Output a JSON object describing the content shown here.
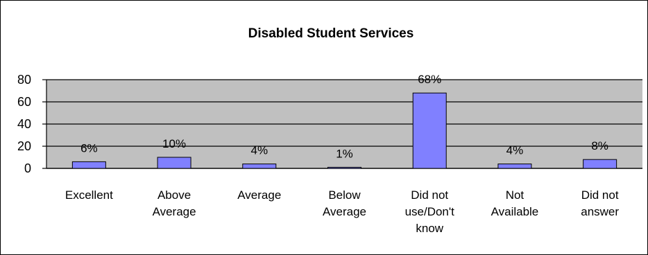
{
  "chart_data": {
    "type": "bar",
    "title": "Disabled Student Services",
    "xlabel": "",
    "ylabel": "",
    "categories": [
      "Excellent",
      "Above Average",
      "Average",
      "Below Average",
      "Did not use/Don't know",
      "Not Available",
      "Did not answer"
    ],
    "category_lines": [
      [
        "Excellent"
      ],
      [
        "Above",
        "Average"
      ],
      [
        "Average"
      ],
      [
        "Below",
        "Average"
      ],
      [
        "Did not",
        "use/Don't",
        "know"
      ],
      [
        "Not",
        "Available"
      ],
      [
        "Did not",
        "answer"
      ]
    ],
    "values": [
      6,
      10,
      4,
      1,
      68,
      4,
      8
    ],
    "data_labels": [
      "6%",
      "10%",
      "4%",
      "1%",
      "68%",
      "4%",
      "8%"
    ],
    "ylim": [
      0,
      80
    ],
    "yticks": [
      0,
      20,
      40,
      60,
      80
    ],
    "grid": true,
    "legend": "none",
    "colors": {
      "plot_background": "#c0c0c0",
      "bar_fill": "#8080ff",
      "bar_stroke": "#000000",
      "gridline": "#000000",
      "frame": "#000000"
    }
  }
}
